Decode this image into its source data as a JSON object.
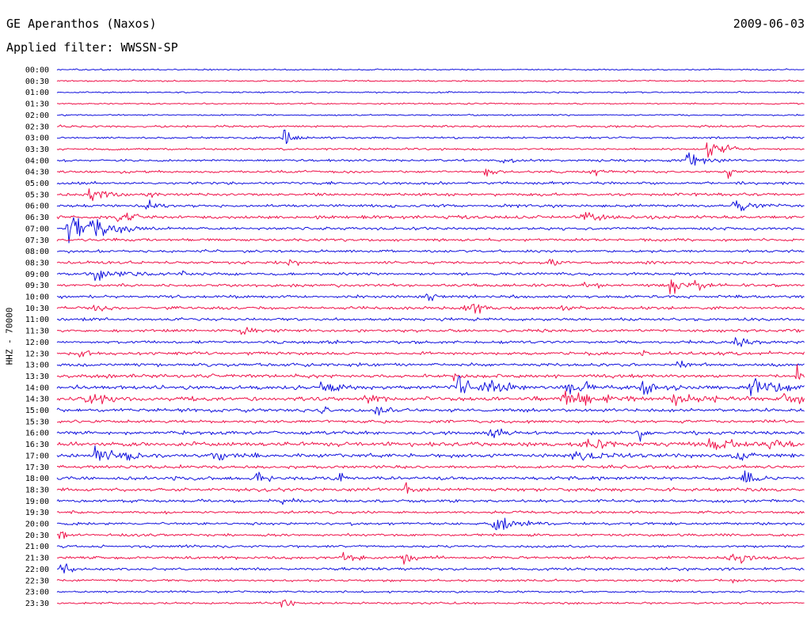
{
  "header": {
    "station": "GE Aperanthos (Naxos)",
    "date": "2009-06-03",
    "filter": "Applied filter: WWSSN-SP"
  },
  "side_label": "HHZ - 70000",
  "colors": {
    "blue": "#1010dd",
    "red": "#ee1048",
    "background": "#ffffff"
  },
  "chart_data": {
    "type": "line",
    "title": "GE Aperanthos (Naxos)",
    "subtitle": "Applied filter: WWSSN-SP",
    "ylabel": "HHZ - 70000",
    "xlabel": "",
    "categories": [
      "00:00",
      "00:30",
      "01:00",
      "01:30",
      "02:00",
      "02:30",
      "03:00",
      "03:30",
      "04:00",
      "04:30",
      "05:00",
      "05:30",
      "06:00",
      "06:30",
      "07:00",
      "07:30",
      "08:00",
      "08:30",
      "09:00",
      "09:30",
      "10:00",
      "10:30",
      "11:00",
      "11:30",
      "12:00",
      "12:30",
      "13:00",
      "13:30",
      "14:00",
      "14:30",
      "15:00",
      "15:30",
      "16:00",
      "16:30",
      "17:00",
      "17:30",
      "18:00",
      "18:30",
      "19:00",
      "19:30",
      "20:00",
      "20:30",
      "21:00",
      "21:30",
      "22:00",
      "22:30",
      "23:00",
      "23:30"
    ],
    "xlim": [
      0,
      30
    ],
    "x_unit": "minutes",
    "trace_colors": [
      "blue",
      "red"
    ],
    "noise_level": [
      0.5,
      0.5,
      0.5,
      0.5,
      0.5,
      0.7,
      0.7,
      0.7,
      0.8,
      0.9,
      0.9,
      1.0,
      1.0,
      1.1,
      1.0,
      0.9,
      0.9,
      1.0,
      1.0,
      1.0,
      1.0,
      1.0,
      1.0,
      1.0,
      1.0,
      1.1,
      1.1,
      1.2,
      1.4,
      1.5,
      1.2,
      1.1,
      1.2,
      1.4,
      1.4,
      1.1,
      1.2,
      1.1,
      1.0,
      0.9,
      0.9,
      0.9,
      0.9,
      1.0,
      1.0,
      0.8,
      0.7,
      0.7
    ],
    "events": [
      {
        "row": 6,
        "minute": 9.1,
        "amplitude": 7,
        "duration": 0.5
      },
      {
        "row": 7,
        "minute": 26.1,
        "amplitude": 7,
        "duration": 0.8
      },
      {
        "row": 8,
        "minute": 25.3,
        "amplitude": 8,
        "duration": 0.8
      },
      {
        "row": 8,
        "minute": 17.8,
        "amplitude": 4,
        "duration": 0.5
      },
      {
        "row": 9,
        "minute": 17.2,
        "amplitude": 4,
        "duration": 0.5
      },
      {
        "row": 9,
        "minute": 21.4,
        "amplitude": 5,
        "duration": 0.5
      },
      {
        "row": 9,
        "minute": 26.9,
        "amplitude": 5,
        "duration": 0.5
      },
      {
        "row": 11,
        "minute": 1.3,
        "amplitude": 7,
        "duration": 0.8
      },
      {
        "row": 11,
        "minute": 3.6,
        "amplitude": 5,
        "duration": 0.4
      },
      {
        "row": 12,
        "minute": 3.6,
        "amplitude": 6,
        "duration": 0.5
      },
      {
        "row": 12,
        "minute": 27.1,
        "amplitude": 6,
        "duration": 1.0
      },
      {
        "row": 13,
        "minute": 2.4,
        "amplitude": 7,
        "duration": 0.8
      },
      {
        "row": 13,
        "minute": 21.0,
        "amplitude": 8,
        "duration": 0.6
      },
      {
        "row": 14,
        "minute": 0.4,
        "amplitude": 13,
        "duration": 1.5
      },
      {
        "row": 15,
        "minute": 2.3,
        "amplitude": 3,
        "duration": 0.5
      },
      {
        "row": 17,
        "minute": 9.3,
        "amplitude": 5,
        "duration": 0.6
      },
      {
        "row": 17,
        "minute": 19.7,
        "amplitude": 5,
        "duration": 0.5
      },
      {
        "row": 18,
        "minute": 1.5,
        "amplitude": 7,
        "duration": 1.2
      },
      {
        "row": 18,
        "minute": 5.0,
        "amplitude": 3,
        "duration": 0.5
      },
      {
        "row": 19,
        "minute": 24.6,
        "amplitude": 7,
        "duration": 0.7
      },
      {
        "row": 19,
        "minute": 25.6,
        "amplitude": 6,
        "duration": 0.5
      },
      {
        "row": 19,
        "minute": 21.2,
        "amplitude": 4,
        "duration": 0.6
      },
      {
        "row": 20,
        "minute": 14.8,
        "amplitude": 4,
        "duration": 0.6
      },
      {
        "row": 21,
        "minute": 16.4,
        "amplitude": 7,
        "duration": 0.8
      },
      {
        "row": 21,
        "minute": 1.5,
        "amplitude": 6,
        "duration": 0.6
      },
      {
        "row": 21,
        "minute": 20.1,
        "amplitude": 4,
        "duration": 0.5
      },
      {
        "row": 23,
        "minute": 7.4,
        "amplitude": 6,
        "duration": 0.5
      },
      {
        "row": 24,
        "minute": 27.2,
        "amplitude": 5,
        "duration": 0.6
      },
      {
        "row": 25,
        "minute": 0.9,
        "amplitude": 4,
        "duration": 0.5
      },
      {
        "row": 25,
        "minute": 23.4,
        "amplitude": 4,
        "duration": 0.5
      },
      {
        "row": 26,
        "minute": 24.9,
        "amplitude": 4,
        "duration": 0.6
      },
      {
        "row": 27,
        "minute": 29.6,
        "amplitude": 10,
        "duration": 0.7
      },
      {
        "row": 27,
        "minute": 15.9,
        "amplitude": 6,
        "duration": 0.4
      },
      {
        "row": 28,
        "minute": 10.6,
        "amplitude": 8,
        "duration": 0.8
      },
      {
        "row": 28,
        "minute": 16.1,
        "amplitude": 10,
        "duration": 0.8
      },
      {
        "row": 28,
        "minute": 17.0,
        "amplitude": 6,
        "duration": 1.5
      },
      {
        "row": 28,
        "minute": 20.4,
        "amplitude": 6,
        "duration": 1.5
      },
      {
        "row": 28,
        "minute": 23.4,
        "amplitude": 6,
        "duration": 1.5
      },
      {
        "row": 28,
        "minute": 27.8,
        "amplitude": 7,
        "duration": 1.5
      },
      {
        "row": 29,
        "minute": 1.1,
        "amplitude": 5,
        "duration": 1.5
      },
      {
        "row": 29,
        "minute": 12.2,
        "amplitude": 6,
        "duration": 1.0
      },
      {
        "row": 29,
        "minute": 20.2,
        "amplitude": 7,
        "duration": 2.0
      },
      {
        "row": 29,
        "minute": 24.7,
        "amplitude": 6,
        "duration": 2.0
      },
      {
        "row": 29,
        "minute": 29.1,
        "amplitude": 7,
        "duration": 1.0
      },
      {
        "row": 30,
        "minute": 12.8,
        "amplitude": 6,
        "duration": 0.6
      },
      {
        "row": 30,
        "minute": 10.5,
        "amplitude": 4,
        "duration": 0.6
      },
      {
        "row": 32,
        "minute": 17.3,
        "amplitude": 7,
        "duration": 0.7
      },
      {
        "row": 32,
        "minute": 23.3,
        "amplitude": 6,
        "duration": 0.7
      },
      {
        "row": 33,
        "minute": 21.0,
        "amplitude": 6,
        "duration": 1.5
      },
      {
        "row": 33,
        "minute": 26.2,
        "amplitude": 6,
        "duration": 1.5
      },
      {
        "row": 33,
        "minute": 28.6,
        "amplitude": 7,
        "duration": 0.8
      },
      {
        "row": 34,
        "minute": 1.5,
        "amplitude": 8,
        "duration": 1.5
      },
      {
        "row": 34,
        "minute": 6.2,
        "amplitude": 6,
        "duration": 1.5
      },
      {
        "row": 34,
        "minute": 20.7,
        "amplitude": 5,
        "duration": 1.5
      },
      {
        "row": 34,
        "minute": 27.0,
        "amplitude": 6,
        "duration": 1.0
      },
      {
        "row": 36,
        "minute": 8.0,
        "amplitude": 6,
        "duration": 0.5
      },
      {
        "row": 36,
        "minute": 27.5,
        "amplitude": 9,
        "duration": 0.7
      },
      {
        "row": 36,
        "minute": 11.3,
        "amplitude": 4,
        "duration": 0.6
      },
      {
        "row": 37,
        "minute": 14.0,
        "amplitude": 6,
        "duration": 0.4
      },
      {
        "row": 38,
        "minute": 9.0,
        "amplitude": 4,
        "duration": 0.8
      },
      {
        "row": 40,
        "minute": 17.5,
        "amplitude": 7,
        "duration": 1.0
      },
      {
        "row": 41,
        "minute": 0.1,
        "amplitude": 5,
        "duration": 0.4
      },
      {
        "row": 43,
        "minute": 11.5,
        "amplitude": 6,
        "duration": 0.6
      },
      {
        "row": 43,
        "minute": 13.8,
        "amplitude": 6,
        "duration": 0.5
      },
      {
        "row": 43,
        "minute": 26.9,
        "amplitude": 7,
        "duration": 1.0
      },
      {
        "row": 44,
        "minute": 0.1,
        "amplitude": 8,
        "duration": 0.4
      },
      {
        "row": 45,
        "minute": 27.0,
        "amplitude": 3,
        "duration": 0.5
      },
      {
        "row": 47,
        "minute": 9.0,
        "amplitude": 4,
        "duration": 0.6
      }
    ],
    "grid": false,
    "legend": "none"
  }
}
